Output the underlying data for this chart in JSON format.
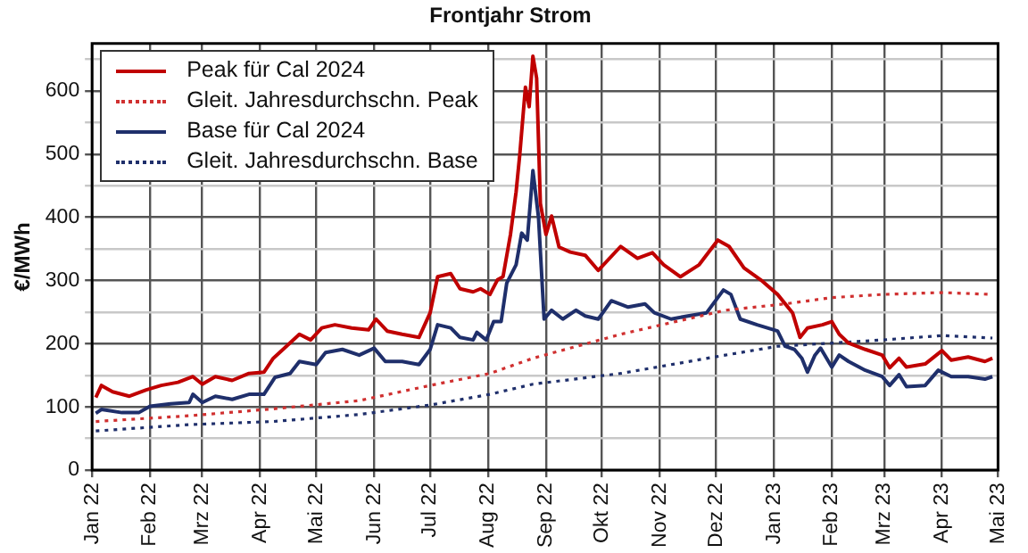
{
  "chart_data": {
    "type": "line",
    "title": "Frontjahr Strom",
    "ylabel": "€/MWh",
    "xlim": [
      "2022-01-01",
      "2023-05-01"
    ],
    "xticks": [
      {
        "value": "2022-01-01",
        "label": "Jan 22"
      },
      {
        "value": "2022-02-01",
        "label": "Feb 22"
      },
      {
        "value": "2022-03-01",
        "label": "Mrz 22"
      },
      {
        "value": "2022-04-01",
        "label": "Apr 22"
      },
      {
        "value": "2022-05-01",
        "label": "Mai 22"
      },
      {
        "value": "2022-06-01",
        "label": "Jun 22"
      },
      {
        "value": "2022-07-01",
        "label": "Jul 22"
      },
      {
        "value": "2022-08-01",
        "label": "Aug 22"
      },
      {
        "value": "2022-09-01",
        "label": "Sep 22"
      },
      {
        "value": "2022-10-01",
        "label": "Okt 22"
      },
      {
        "value": "2022-11-01",
        "label": "Nov 22"
      },
      {
        "value": "2022-12-01",
        "label": "Dez 22"
      },
      {
        "value": "2023-01-01",
        "label": "Jan 23"
      },
      {
        "value": "2023-02-01",
        "label": "Feb 23"
      },
      {
        "value": "2023-03-01",
        "label": "Mrz 23"
      },
      {
        "value": "2023-04-01",
        "label": "Apr 23"
      },
      {
        "value": "2023-05-01",
        "label": "Mai 23"
      }
    ],
    "ylim": [
      0,
      675
    ],
    "yticks": [
      0,
      {
        "value": 50,
        "label": null
      },
      100,
      {
        "value": 150,
        "label": null
      },
      200,
      {
        "value": 250,
        "label": null
      },
      300,
      {
        "value": 350,
        "label": null
      },
      400,
      {
        "value": 450,
        "label": null
      },
      500,
      {
        "value": 550,
        "label": null
      },
      600,
      {
        "value": 650,
        "label": null
      }
    ],
    "grid": true,
    "legend": "top left",
    "marker": "none",
    "series": [
      {
        "name": "Peak für Cal 2024",
        "color": "#c00000",
        "line_style": "solid",
        "x": [
          "2022-01-03",
          "2022-01-06",
          "2022-01-12",
          "2022-01-21",
          "2022-01-30",
          "2022-02-07",
          "2022-02-16",
          "2022-02-24",
          "2022-03-01",
          "2022-03-08",
          "2022-03-17",
          "2022-03-26",
          "2022-04-03",
          "2022-04-08",
          "2022-04-14",
          "2022-04-22",
          "2022-04-28",
          "2022-05-04",
          "2022-05-11",
          "2022-05-20",
          "2022-05-29",
          "2022-06-02",
          "2022-06-08",
          "2022-06-16",
          "2022-06-25",
          "2022-07-01",
          "2022-07-05",
          "2022-07-12",
          "2022-07-17",
          "2022-07-24",
          "2022-07-28",
          "2022-08-02",
          "2022-08-06",
          "2022-08-09",
          "2022-08-13",
          "2022-08-16",
          "2022-08-18",
          "2022-08-21",
          "2022-08-23",
          "2022-08-25",
          "2022-08-27",
          "2022-08-29",
          "2022-09-01",
          "2022-09-04",
          "2022-09-08",
          "2022-09-14",
          "2022-09-22",
          "2022-09-29",
          "2022-10-11",
          "2022-10-20",
          "2022-10-28",
          "2022-11-03",
          "2022-11-12",
          "2022-11-22",
          "2022-12-02",
          "2022-12-08",
          "2022-12-16",
          "2022-12-25",
          "2023-01-03",
          "2023-01-11",
          "2023-01-15",
          "2023-01-19",
          "2023-01-27",
          "2023-02-01",
          "2023-02-05",
          "2023-02-10",
          "2023-02-19",
          "2023-02-28",
          "2023-03-04",
          "2023-03-09",
          "2023-03-13",
          "2023-03-23",
          "2023-04-01",
          "2023-04-06",
          "2023-04-15",
          "2023-04-24",
          "2023-04-28"
        ],
        "values": [
          115,
          134,
          124,
          117,
          127,
          134,
          139,
          148,
          136,
          148,
          142,
          153,
          155,
          177,
          193,
          215,
          206,
          225,
          230,
          225,
          222,
          239,
          220,
          215,
          210,
          249,
          306,
          311,
          287,
          282,
          287,
          278,
          301,
          306,
          373,
          440,
          500,
          606,
          575,
          655,
          620,
          422,
          373,
          402,
          353,
          345,
          340,
          316,
          354,
          335,
          344,
          325,
          306,
          325,
          364,
          354,
          320,
          301,
          278,
          249,
          210,
          225,
          230,
          235,
          215,
          201,
          191,
          182,
          162,
          177,
          163,
          168,
          189,
          174,
          179,
          172,
          177
        ]
      },
      {
        "name": "Gleit. Jahresdurchschn. Peak",
        "color": "#d03030",
        "line_style": "dotted",
        "x": [
          "2022-01-03",
          "2022-02-22",
          "2022-04-08",
          "2022-05-24",
          "2022-07-01",
          "2022-08-02",
          "2022-08-25",
          "2022-10-11",
          "2022-12-06",
          "2023-01-07",
          "2023-02-01",
          "2023-02-28",
          "2023-04-01",
          "2023-04-28"
        ],
        "values": [
          77,
          86,
          97,
          110,
          134,
          153,
          177,
          215,
          253,
          263,
          273,
          278,
          281,
          278
        ]
      },
      {
        "name": "Base für Cal 2024",
        "color": "#1f2f6b",
        "line_style": "solid",
        "x": [
          "2022-01-03",
          "2022-01-06",
          "2022-01-17",
          "2022-01-26",
          "2022-02-01",
          "2022-02-12",
          "2022-02-22",
          "2022-02-24",
          "2022-03-01",
          "2022-03-08",
          "2022-03-17",
          "2022-03-26",
          "2022-04-03",
          "2022-04-09",
          "2022-04-17",
          "2022-04-22",
          "2022-05-01",
          "2022-05-06",
          "2022-05-15",
          "2022-05-24",
          "2022-06-01",
          "2022-06-07",
          "2022-06-16",
          "2022-06-25",
          "2022-07-01",
          "2022-07-05",
          "2022-07-12",
          "2022-07-17",
          "2022-07-24",
          "2022-07-26",
          "2022-07-31",
          "2022-08-04",
          "2022-08-08",
          "2022-08-11",
          "2022-08-16",
          "2022-08-19",
          "2022-08-22",
          "2022-08-25",
          "2022-08-28",
          "2022-08-31",
          "2022-09-04",
          "2022-09-10",
          "2022-09-17",
          "2022-09-22",
          "2022-09-29",
          "2022-10-06",
          "2022-10-15",
          "2022-10-24",
          "2022-10-29",
          "2022-11-07",
          "2022-11-16",
          "2022-11-26",
          "2022-12-05",
          "2022-12-09",
          "2022-12-14",
          "2022-12-23",
          "2023-01-03",
          "2023-01-07",
          "2023-01-12",
          "2023-01-16",
          "2023-01-19",
          "2023-01-23",
          "2023-01-26",
          "2023-02-01",
          "2023-02-05",
          "2023-02-10",
          "2023-02-19",
          "2023-02-28",
          "2023-03-04",
          "2023-03-09",
          "2023-03-13",
          "2023-03-23",
          "2023-03-30",
          "2023-04-06",
          "2023-04-15",
          "2023-04-24",
          "2023-04-28"
        ],
        "values": [
          90,
          96,
          91,
          91,
          101,
          105,
          107,
          120,
          107,
          117,
          112,
          120,
          120,
          147,
          153,
          172,
          167,
          186,
          191,
          182,
          193,
          172,
          172,
          167,
          191,
          230,
          225,
          210,
          206,
          218,
          206,
          235,
          235,
          296,
          325,
          375,
          364,
          474,
          400,
          239,
          253,
          239,
          253,
          244,
          239,
          268,
          258,
          263,
          249,
          239,
          244,
          249,
          285,
          278,
          239,
          230,
          220,
          196,
          191,
          177,
          155,
          182,
          193,
          163,
          182,
          172,
          158,
          148,
          134,
          151,
          132,
          134,
          158,
          148,
          148,
          144,
          148
        ]
      },
      {
        "name": "Gleit. Jahresdurchschn. Base",
        "color": "#1f2f6b",
        "line_style": "dotted",
        "x": [
          "2022-01-03",
          "2022-02-22",
          "2022-04-08",
          "2022-05-24",
          "2022-07-01",
          "2022-08-02",
          "2022-08-25",
          "2022-10-11",
          "2022-12-06",
          "2023-01-03",
          "2023-02-01",
          "2023-02-28",
          "2023-04-01",
          "2023-04-28"
        ],
        "values": [
          62,
          72,
          77,
          88,
          103,
          120,
          136,
          153,
          182,
          196,
          201,
          206,
          213,
          209
        ]
      }
    ]
  }
}
